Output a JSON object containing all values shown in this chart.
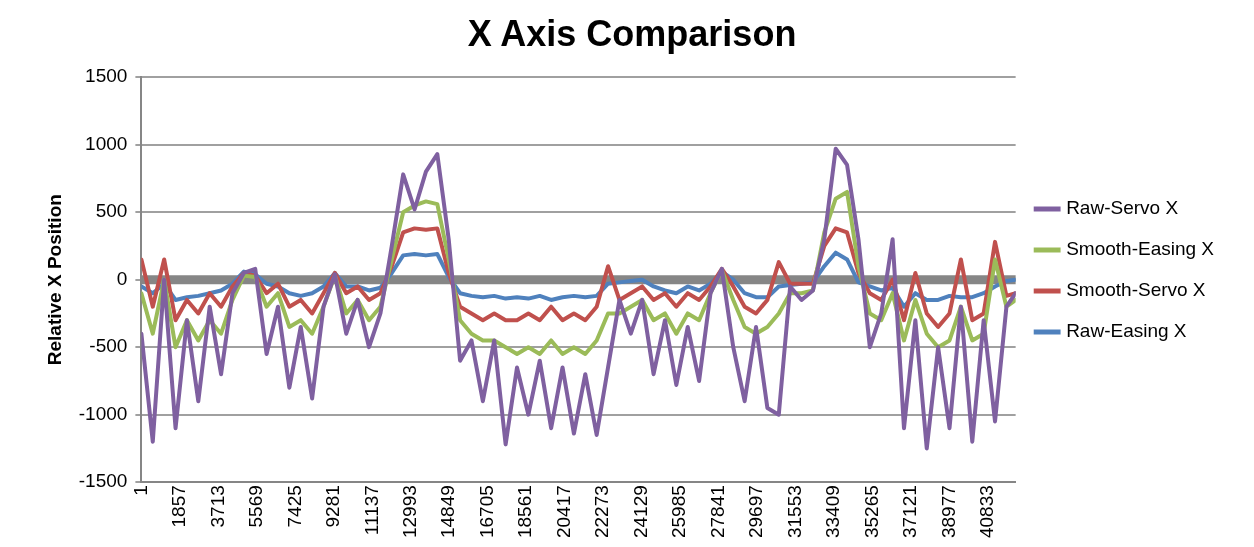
{
  "chart_data": {
    "type": "line",
    "title": "X Axis Comparison",
    "ylabel": "Relative X Position",
    "legend": "right",
    "grid": "y",
    "xlim": [
      1,
      42170
    ],
    "ylim": [
      -1500,
      1500
    ],
    "xticks": [
      1,
      1857,
      3713,
      5569,
      7425,
      9281,
      11137,
      12993,
      14849,
      16705,
      18561,
      20417,
      22273,
      24129,
      25985,
      27841,
      29697,
      31553,
      33409,
      35265,
      37121,
      38977,
      40833
    ],
    "yticks": [
      -1500,
      -1000,
      -500,
      0,
      500,
      1000,
      1500
    ],
    "x": [
      1,
      550,
      1099,
      1648,
      2197,
      2746,
      3295,
      3844,
      4393,
      4942,
      5491,
      6040,
      6589,
      7138,
      7687,
      8236,
      8785,
      9334,
      9883,
      10432,
      10981,
      11530,
      12079,
      12628,
      13177,
      13726,
      14275,
      14824,
      15373,
      15922,
      16471,
      17020,
      17569,
      18118,
      18667,
      19216,
      19765,
      20314,
      20863,
      21412,
      21961,
      22510,
      23059,
      23608,
      24157,
      24706,
      25255,
      25804,
      26353,
      26902,
      27451,
      28000,
      28549,
      29098,
      29647,
      30196,
      30745,
      31294,
      31843,
      32392,
      32941,
      33490,
      34039,
      34588,
      35137,
      35686,
      36235,
      36784,
      37333,
      37882,
      38431,
      38980,
      39529,
      40078,
      40627,
      41176,
      41725,
      42170
    ],
    "series": [
      {
        "name": "Raw-Servo X",
        "color": "#7f60a0",
        "values": [
          -400,
          -1200,
          0,
          -1100,
          -300,
          -900,
          -200,
          -700,
          -100,
          50,
          80,
          -550,
          -200,
          -800,
          -350,
          -880,
          -200,
          40,
          -400,
          -150,
          -500,
          -250,
          250,
          780,
          520,
          800,
          930,
          300,
          -600,
          -450,
          -900,
          -450,
          -1220,
          -650,
          -1000,
          -600,
          -1100,
          -650,
          -1140,
          -700,
          -1150,
          -650,
          -150,
          -400,
          -150,
          -700,
          -300,
          -780,
          -350,
          -750,
          -100,
          80,
          -500,
          -900,
          -350,
          -950,
          -1000,
          -50,
          -150,
          -80,
          300,
          970,
          850,
          300,
          -500,
          -250,
          300,
          -1100,
          -300,
          -1250,
          -500,
          -1100,
          -200,
          -1200,
          -300,
          -1050,
          -200,
          -100
        ]
      },
      {
        "name": "Smooth-Easing X",
        "color": "#9bbb59",
        "values": [
          -100,
          -400,
          0,
          -500,
          -300,
          -450,
          -300,
          -400,
          -150,
          30,
          20,
          -200,
          -100,
          -350,
          -300,
          -400,
          -200,
          30,
          -250,
          -150,
          -300,
          -200,
          150,
          500,
          550,
          580,
          560,
          150,
          -300,
          -400,
          -450,
          -450,
          -500,
          -550,
          -500,
          -550,
          -450,
          -550,
          -500,
          -550,
          -450,
          -250,
          -250,
          -200,
          -150,
          -300,
          -250,
          -400,
          -250,
          -300,
          -100,
          70,
          -150,
          -350,
          -400,
          -350,
          -250,
          -100,
          -100,
          -80,
          350,
          600,
          650,
          100,
          -250,
          -300,
          -100,
          -450,
          -150,
          -400,
          -500,
          -450,
          -200,
          -450,
          -400,
          150,
          -200,
          -150
        ]
      },
      {
        "name": "Smooth-Servo X",
        "color": "#c0504d",
        "values": [
          150,
          -200,
          150,
          -300,
          -150,
          -250,
          -100,
          -200,
          -50,
          50,
          30,
          -100,
          -30,
          -200,
          -150,
          -250,
          -100,
          50,
          -100,
          -50,
          -150,
          -100,
          100,
          350,
          380,
          370,
          380,
          50,
          -200,
          -250,
          -300,
          -250,
          -300,
          -300,
          -250,
          -300,
          -200,
          -300,
          -250,
          -300,
          -200,
          100,
          -150,
          -100,
          -50,
          -150,
          -100,
          -200,
          -100,
          -150,
          -50,
          80,
          -50,
          -200,
          -250,
          -150,
          130,
          -30,
          -30,
          -30,
          250,
          380,
          350,
          50,
          -100,
          -150,
          0,
          -300,
          50,
          -250,
          -350,
          -250,
          150,
          -300,
          -250,
          280,
          -120,
          -100
        ]
      },
      {
        "name": "Raw-Easing X",
        "color": "#4f81bd",
        "values": [
          -50,
          -100,
          -30,
          -150,
          -130,
          -120,
          -100,
          -80,
          -30,
          60,
          40,
          -30,
          -50,
          -100,
          -120,
          -100,
          -50,
          50,
          -50,
          -50,
          -80,
          -60,
          50,
          180,
          190,
          180,
          190,
          20,
          -100,
          -120,
          -130,
          -120,
          -140,
          -130,
          -140,
          -120,
          -150,
          -130,
          -120,
          -130,
          -120,
          -30,
          -20,
          -10,
          0,
          -50,
          -80,
          -100,
          -50,
          -80,
          -30,
          60,
          0,
          -100,
          -130,
          -130,
          -50,
          -40,
          -30,
          -20,
          100,
          200,
          150,
          -20,
          -50,
          -80,
          -60,
          -200,
          -100,
          -150,
          -150,
          -120,
          -130,
          -130,
          -100,
          -50,
          -10,
          0
        ]
      }
    ]
  }
}
